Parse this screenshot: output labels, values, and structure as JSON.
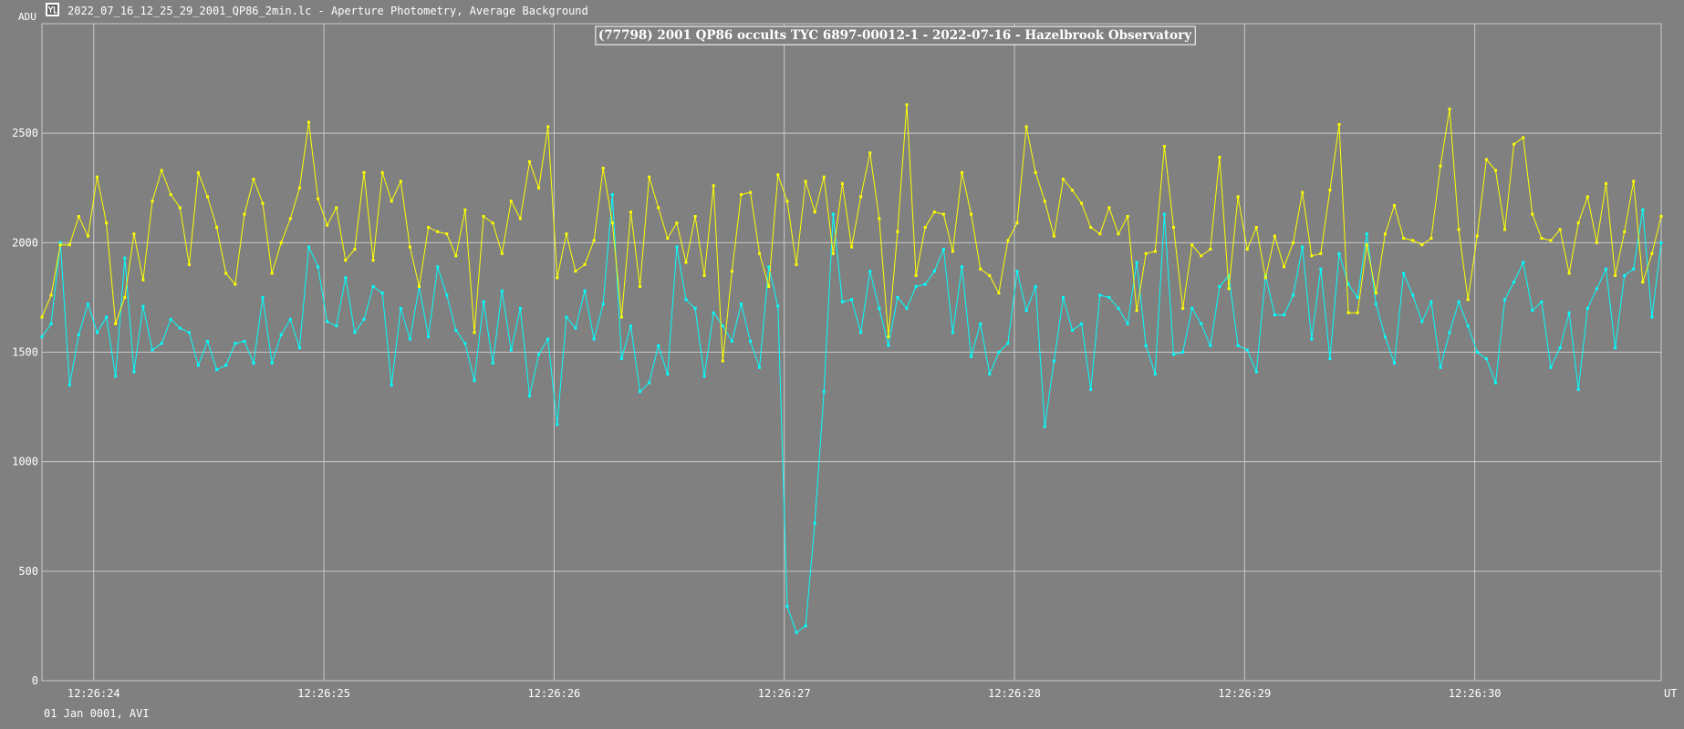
{
  "window": {
    "title": "2022_07_16_12_25_29_2001_QP86_2min.lc - Aperture Photometry, Average Background",
    "icon": "lightcurve-app-icon"
  },
  "footer": {
    "text": "01 Jan 0001, AVI"
  },
  "colors": {
    "background": "#808080",
    "grid": "#c8c8c8",
    "target": "#00ffff",
    "comparison": "#ffff00"
  },
  "chart_data": {
    "type": "line",
    "title": "(77798) 2001 QP86 occults TYC 6897-00012-1 - 2022-07-16 - Hazelbrook Observatory",
    "ylabel": "ADU",
    "xlabel": "UT",
    "ylim": [
      0,
      3000
    ],
    "y_ticks": [
      "0",
      "500",
      "1000",
      "1500",
      "2000",
      "2500"
    ],
    "x_tick_labels": [
      "12:26:24",
      "12:26:25",
      "12:26:26",
      "12:26:27",
      "12:26:28",
      "12:26:29",
      "12:26:30"
    ],
    "x_unit": "seconds after 12:26:23",
    "xlim": [
      0.775,
      7.81
    ],
    "grid": true,
    "legend": "none",
    "series": [
      {
        "color": "#00ffff",
        "values": [
          1570,
          1630,
          2000,
          1350,
          1580,
          1720,
          1590,
          1660,
          1390,
          1930,
          1410,
          1710,
          1510,
          1540,
          1650,
          1610,
          1590,
          1440,
          1550,
          1420,
          1440,
          1540,
          1550,
          1450,
          1750,
          1450,
          1580,
          1650,
          1520,
          1980,
          1890,
          1640,
          1620,
          1840,
          1590,
          1650,
          1800,
          1770,
          1350,
          1700,
          1560,
          1800,
          1570,
          1890,
          1760,
          1600,
          1540,
          1370,
          1730,
          1450,
          1780,
          1510,
          1700,
          1300,
          1490,
          1560,
          1170,
          1660,
          1610,
          1780,
          1560,
          1720,
          2220,
          1470,
          1620,
          1320,
          1360,
          1530,
          1400,
          1980,
          1740,
          1700,
          1390,
          1680,
          1620,
          1550,
          1720,
          1550,
          1430,
          1890,
          1710,
          340,
          220,
          250,
          720,
          1320,
          2130,
          1730,
          1740,
          1590,
          1870,
          1700,
          1530,
          1750,
          1700,
          1800,
          1810,
          1870,
          1970,
          1590,
          1890,
          1480,
          1630,
          1400,
          1500,
          1540,
          1870,
          1690,
          1800,
          1160,
          1460,
          1750,
          1600,
          1630,
          1330,
          1760,
          1750,
          1700,
          1630,
          1910,
          1530,
          1400,
          2130,
          1490,
          1500,
          1700,
          1630,
          1530,
          1800,
          1850,
          1530,
          1510,
          1410,
          1850,
          1670,
          1670,
          1760,
          1980,
          1560,
          1880,
          1470,
          1950,
          1810,
          1750,
          2040,
          1720,
          1570,
          1450,
          1860,
          1760,
          1640,
          1730,
          1430,
          1590,
          1730,
          1620,
          1500,
          1470,
          1360,
          1740,
          1820,
          1910,
          1690,
          1730,
          1430,
          1520,
          1680,
          1330,
          1700,
          1790,
          1880,
          1520,
          1850,
          1880,
          2150,
          1660,
          2000
        ]
      },
      {
        "color": "#ffff00",
        "values": [
          1660,
          1760,
          1990,
          1990,
          2120,
          2030,
          2300,
          2090,
          1630,
          1750,
          2040,
          1830,
          2190,
          2330,
          2220,
          2160,
          1900,
          2320,
          2210,
          2070,
          1860,
          1810,
          2130,
          2290,
          2180,
          1860,
          2000,
          2110,
          2250,
          2550,
          2200,
          2080,
          2160,
          1920,
          1970,
          2320,
          1920,
          2320,
          2190,
          2280,
          1980,
          1800,
          2070,
          2050,
          2040,
          1940,
          2150,
          1590,
          2120,
          2090,
          1950,
          2190,
          2110,
          2370,
          2250,
          2530,
          1840,
          2040,
          1870,
          1900,
          2010,
          2340,
          2090,
          1660,
          2140,
          1800,
          2300,
          2160,
          2020,
          2090,
          1910,
          2120,
          1850,
          2260,
          1460,
          1870,
          2220,
          2230,
          1950,
          1800,
          2310,
          2190,
          1900,
          2280,
          2140,
          2300,
          1950,
          2270,
          1980,
          2210,
          2410,
          2110,
          1570,
          2050,
          2630,
          1850,
          2070,
          2140,
          2130,
          1960,
          2320,
          2130,
          1880,
          1850,
          1770,
          2010,
          2090,
          2530,
          2320,
          2190,
          2030,
          2290,
          2240,
          2180,
          2070,
          2040,
          2160,
          2040,
          2120,
          1690,
          1950,
          1960,
          2440,
          2070,
          1700,
          1990,
          1940,
          1970,
          2390,
          1790,
          2210,
          1970,
          2070,
          1840,
          2030,
          1890,
          2000,
          2230,
          1940,
          1950,
          2240,
          2540,
          1680,
          1680,
          1990,
          1770,
          2040,
          2170,
          2020,
          2010,
          1990,
          2020,
          2350,
          2610,
          2060,
          1740,
          2030,
          2380,
          2330,
          2060,
          2450,
          2480,
          2130,
          2020,
          2010,
          2060,
          1860,
          2090,
          2210,
          2000,
          2270,
          1850,
          2050,
          2280,
          1820,
          1950,
          2120
        ]
      }
    ]
  }
}
